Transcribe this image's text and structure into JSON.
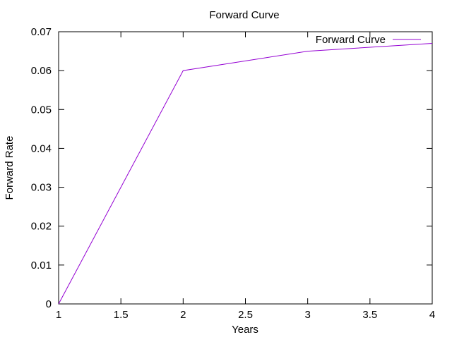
{
  "chart_data": {
    "type": "line",
    "title": "Forward Curve",
    "xlabel": "Years",
    "ylabel": "Forward Rate",
    "xlim": [
      1,
      4
    ],
    "ylim": [
      0,
      0.07
    ],
    "x_ticks": [
      1,
      1.5,
      2,
      2.5,
      3,
      3.5,
      4
    ],
    "x_tick_labels": [
      "1",
      "1.5",
      "2",
      "2.5",
      "3",
      "3.5",
      "4"
    ],
    "y_ticks": [
      0,
      0.01,
      0.02,
      0.03,
      0.04,
      0.05,
      0.06,
      0.07
    ],
    "y_tick_labels": [
      "0",
      "0.01",
      "0.02",
      "0.03",
      "0.04",
      "0.05",
      "0.06",
      "0.07"
    ],
    "grid": false,
    "legend_position": "top-right",
    "series": [
      {
        "name": "Forward Curve",
        "color": "#9400d3",
        "x": [
          1,
          2,
          3,
          4
        ],
        "y": [
          0,
          0.06,
          0.065,
          0.067
        ]
      }
    ]
  }
}
